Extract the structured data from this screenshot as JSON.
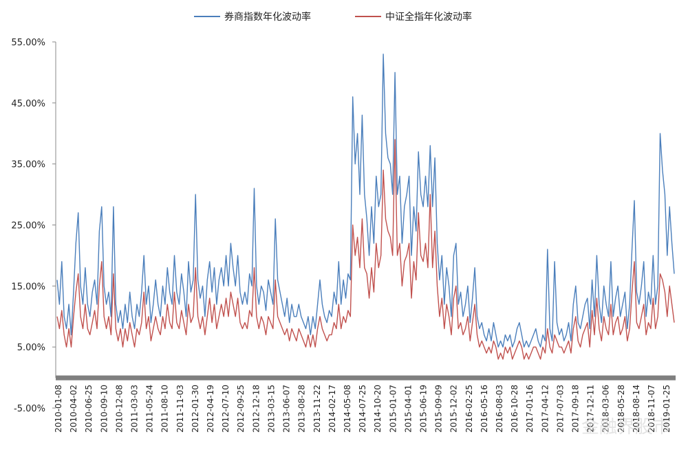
{
  "chart_data": {
    "type": "line",
    "title": "",
    "xlabel": "",
    "ylabel": "",
    "ylim": [
      -0.05,
      0.55
    ],
    "yticks": [
      "-5.00%",
      "5.00%",
      "15.00%",
      "25.00%",
      "35.00%",
      "45.00%",
      "55.00%"
    ],
    "ytick_values": [
      -0.05,
      0.05,
      0.15,
      0.25,
      0.35,
      0.45,
      0.55
    ],
    "grid": false,
    "legend_position": "top-center",
    "x_tick_labels": [
      "2010-01-08",
      "2010-04-02",
      "2010-06-25",
      "2010-09-10",
      "2010-12-08",
      "2011-03-03",
      "2011-05-24",
      "2011-08-10",
      "2011-11-03",
      "2012-01-30",
      "2012-04-19",
      "2012-07-10",
      "2012-09-25",
      "2012-12-18",
      "2013-03-15",
      "2013-06-07",
      "2013-08-28",
      "2013-11-22",
      "2014-02-17",
      "2014-05-08",
      "2014-07-25",
      "2014-10-20",
      "2015-01-07",
      "2015-04-01",
      "2015-06-19",
      "2015-09-09",
      "2015-12-02",
      "2016-02-25",
      "2016-05-16",
      "2016-08-03",
      "2016-10-28",
      "2017-01-16",
      "2017-04-12",
      "2017-07-03",
      "2017-09-18",
      "2017-12-11",
      "2018-03-06",
      "2018-05-28",
      "2018-08-14",
      "2018-11-07",
      "2019-01-25"
    ],
    "series": [
      {
        "name": "券商指数年化波动率",
        "color": "#4a7ebb",
        "values": [
          0.16,
          0.12,
          0.19,
          0.1,
          0.08,
          0.12,
          0.07,
          0.14,
          0.22,
          0.27,
          0.15,
          0.12,
          0.18,
          0.12,
          0.1,
          0.14,
          0.16,
          0.12,
          0.24,
          0.28,
          0.15,
          0.12,
          0.14,
          0.1,
          0.28,
          0.12,
          0.09,
          0.11,
          0.08,
          0.12,
          0.09,
          0.14,
          0.1,
          0.08,
          0.12,
          0.1,
          0.14,
          0.2,
          0.12,
          0.15,
          0.09,
          0.12,
          0.16,
          0.12,
          0.1,
          0.15,
          0.12,
          0.18,
          0.14,
          0.12,
          0.2,
          0.14,
          0.12,
          0.17,
          0.14,
          0.1,
          0.19,
          0.14,
          0.16,
          0.3,
          0.16,
          0.13,
          0.15,
          0.1,
          0.16,
          0.19,
          0.14,
          0.18,
          0.12,
          0.16,
          0.18,
          0.15,
          0.2,
          0.15,
          0.22,
          0.18,
          0.15,
          0.2,
          0.14,
          0.12,
          0.14,
          0.12,
          0.17,
          0.15,
          0.31,
          0.15,
          0.12,
          0.15,
          0.14,
          0.11,
          0.16,
          0.14,
          0.12,
          0.26,
          0.16,
          0.14,
          0.12,
          0.1,
          0.13,
          0.09,
          0.12,
          0.1,
          0.1,
          0.12,
          0.1,
          0.09,
          0.08,
          0.1,
          0.07,
          0.1,
          0.08,
          0.12,
          0.16,
          0.12,
          0.1,
          0.09,
          0.11,
          0.1,
          0.14,
          0.12,
          0.19,
          0.12,
          0.16,
          0.13,
          0.17,
          0.16,
          0.46,
          0.35,
          0.4,
          0.3,
          0.43,
          0.3,
          0.26,
          0.2,
          0.28,
          0.22,
          0.33,
          0.28,
          0.3,
          0.53,
          0.4,
          0.36,
          0.35,
          0.3,
          0.5,
          0.3,
          0.33,
          0.22,
          0.28,
          0.3,
          0.33,
          0.2,
          0.28,
          0.24,
          0.37,
          0.3,
          0.28,
          0.33,
          0.28,
          0.38,
          0.28,
          0.36,
          0.22,
          0.16,
          0.2,
          0.12,
          0.18,
          0.15,
          0.1,
          0.2,
          0.22,
          0.12,
          0.14,
          0.1,
          0.12,
          0.15,
          0.09,
          0.13,
          0.18,
          0.1,
          0.08,
          0.09,
          0.07,
          0.06,
          0.08,
          0.06,
          0.09,
          0.07,
          0.05,
          0.06,
          0.05,
          0.07,
          0.06,
          0.07,
          0.05,
          0.06,
          0.08,
          0.09,
          0.07,
          0.05,
          0.06,
          0.05,
          0.06,
          0.07,
          0.08,
          0.06,
          0.05,
          0.07,
          0.06,
          0.21,
          0.08,
          0.06,
          0.19,
          0.09,
          0.07,
          0.08,
          0.06,
          0.07,
          0.09,
          0.06,
          0.12,
          0.15,
          0.09,
          0.08,
          0.1,
          0.12,
          0.13,
          0.08,
          0.16,
          0.1,
          0.2,
          0.12,
          0.09,
          0.15,
          0.12,
          0.1,
          0.19,
          0.1,
          0.13,
          0.15,
          0.1,
          0.12,
          0.14,
          0.08,
          0.12,
          0.21,
          0.29,
          0.14,
          0.12,
          0.15,
          0.19,
          0.1,
          0.14,
          0.12,
          0.2,
          0.12,
          0.15,
          0.4,
          0.34,
          0.3,
          0.2,
          0.28,
          0.22,
          0.17
        ]
      },
      {
        "name": "中证全指年化波动率",
        "color": "#c0504d",
        "values": [
          0.1,
          0.08,
          0.11,
          0.07,
          0.05,
          0.08,
          0.05,
          0.1,
          0.14,
          0.17,
          0.1,
          0.08,
          0.12,
          0.08,
          0.07,
          0.09,
          0.11,
          0.08,
          0.15,
          0.19,
          0.1,
          0.08,
          0.1,
          0.07,
          0.17,
          0.08,
          0.06,
          0.08,
          0.05,
          0.08,
          0.06,
          0.09,
          0.07,
          0.05,
          0.08,
          0.07,
          0.09,
          0.14,
          0.08,
          0.1,
          0.06,
          0.08,
          0.1,
          0.08,
          0.07,
          0.1,
          0.08,
          0.12,
          0.09,
          0.08,
          0.14,
          0.09,
          0.08,
          0.11,
          0.09,
          0.07,
          0.12,
          0.09,
          0.1,
          0.18,
          0.1,
          0.08,
          0.1,
          0.07,
          0.1,
          0.13,
          0.09,
          0.12,
          0.08,
          0.1,
          0.12,
          0.1,
          0.13,
          0.1,
          0.14,
          0.12,
          0.1,
          0.13,
          0.09,
          0.08,
          0.09,
          0.08,
          0.11,
          0.1,
          0.18,
          0.1,
          0.08,
          0.1,
          0.09,
          0.07,
          0.1,
          0.09,
          0.08,
          0.16,
          0.1,
          0.09,
          0.08,
          0.07,
          0.08,
          0.06,
          0.08,
          0.07,
          0.06,
          0.08,
          0.07,
          0.06,
          0.05,
          0.07,
          0.05,
          0.07,
          0.05,
          0.08,
          0.1,
          0.08,
          0.07,
          0.06,
          0.07,
          0.07,
          0.09,
          0.08,
          0.12,
          0.08,
          0.1,
          0.09,
          0.11,
          0.1,
          0.25,
          0.2,
          0.23,
          0.18,
          0.26,
          0.18,
          0.17,
          0.13,
          0.18,
          0.14,
          0.22,
          0.18,
          0.2,
          0.34,
          0.26,
          0.24,
          0.23,
          0.2,
          0.39,
          0.2,
          0.22,
          0.15,
          0.19,
          0.2,
          0.22,
          0.13,
          0.19,
          0.16,
          0.27,
          0.2,
          0.19,
          0.22,
          0.18,
          0.3,
          0.18,
          0.24,
          0.15,
          0.1,
          0.13,
          0.08,
          0.12,
          0.1,
          0.07,
          0.13,
          0.15,
          0.08,
          0.09,
          0.07,
          0.08,
          0.1,
          0.06,
          0.09,
          0.12,
          0.07,
          0.05,
          0.06,
          0.05,
          0.04,
          0.05,
          0.04,
          0.06,
          0.05,
          0.03,
          0.04,
          0.03,
          0.05,
          0.04,
          0.05,
          0.03,
          0.04,
          0.05,
          0.06,
          0.05,
          0.03,
          0.04,
          0.03,
          0.04,
          0.05,
          0.05,
          0.04,
          0.03,
          0.05,
          0.04,
          0.08,
          0.05,
          0.04,
          0.07,
          0.06,
          0.05,
          0.05,
          0.04,
          0.05,
          0.06,
          0.04,
          0.08,
          0.1,
          0.06,
          0.05,
          0.07,
          0.08,
          0.09,
          0.05,
          0.11,
          0.07,
          0.13,
          0.08,
          0.06,
          0.1,
          0.08,
          0.07,
          0.12,
          0.07,
          0.09,
          0.1,
          0.07,
          0.08,
          0.1,
          0.06,
          0.08,
          0.14,
          0.19,
          0.09,
          0.08,
          0.1,
          0.12,
          0.07,
          0.09,
          0.08,
          0.13,
          0.08,
          0.1,
          0.17,
          0.16,
          0.14,
          0.1,
          0.15,
          0.12,
          0.09
        ]
      }
    ],
    "baseline": 0.0,
    "watermark": "金融界股市"
  }
}
